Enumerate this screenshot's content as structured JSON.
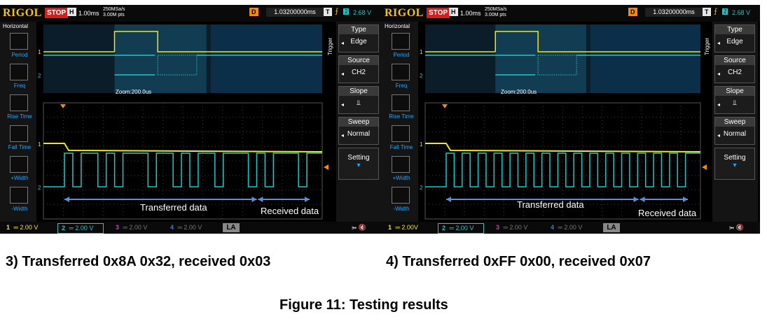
{
  "scopes": [
    {
      "brand": "RIGOL",
      "run_state": "STOP",
      "h_label": "H",
      "timebase": "1.00ms",
      "sample_rate": "250MSa/s",
      "mem_depth": "3.00M pts",
      "d_label": "D",
      "delay": "1.03200000ms",
      "t_label": "T",
      "trigger_channel": "2",
      "trigger_level": "2.68 V",
      "left_menu_title": "Horizontal",
      "left_menu": [
        "Period",
        "Freq",
        "Rise Time",
        "Fall Time",
        "+Width",
        "-Width"
      ],
      "zoom_label": "Zoom:200.0us",
      "trigger_tab": "Trigger",
      "right_menu": [
        {
          "title": "Type",
          "value": "Edge"
        },
        {
          "title": "Source",
          "value": "CH2"
        },
        {
          "title": "Slope",
          "value": "⫫"
        },
        {
          "title": "Sweep",
          "value": "Normal"
        },
        {
          "title": "Setting",
          "value": "▾"
        }
      ],
      "channels": [
        {
          "num": "1",
          "scale": "2.00 V"
        },
        {
          "num": "2",
          "scale": "2.00 V"
        },
        {
          "num": "3",
          "scale": "2.00 V"
        },
        {
          "num": "4",
          "scale": "2.00 V"
        }
      ],
      "la": "LA",
      "transferred_label": "Transferred data",
      "received_label": "Received  data",
      "caption": "3) Transferred 0x8A 0x32, received 0x03"
    },
    {
      "brand": "RIGOL",
      "run_state": "STOP",
      "h_label": "H",
      "timebase": "1.00ms",
      "sample_rate": "250MSa/s",
      "mem_depth": "3.00M pts",
      "d_label": "D",
      "delay": "1.03200000ms",
      "t_label": "T",
      "trigger_channel": "2",
      "trigger_level": "2.68 V",
      "left_menu_title": "Horizontal",
      "left_menu": [
        "Period",
        "Freq",
        "Rise Time",
        "Fall Time",
        "+Width",
        "-Width"
      ],
      "zoom_label": "Zoom:200.0us",
      "trigger_tab": "Trigger",
      "right_menu": [
        {
          "title": "Type",
          "value": "Edge"
        },
        {
          "title": "Source",
          "value": "CH2"
        },
        {
          "title": "Slope",
          "value": "⫫"
        },
        {
          "title": "Sweep",
          "value": "Normal"
        },
        {
          "title": "Setting",
          "value": "▾"
        }
      ],
      "channels": [
        {
          "num": "1",
          "scale": "2.00V"
        },
        {
          "num": "2",
          "scale": "2.00 V"
        },
        {
          "num": "3",
          "scale": "2.00 V"
        },
        {
          "num": "4",
          "scale": "2.00 V"
        }
      ],
      "la": "LA",
      "transferred_label": "Transferred data",
      "received_label": "Received  data",
      "caption": "4) Transferred 0xFF 0x00, received 0x07"
    }
  ],
  "figure_caption": "Figure 11: Testing results",
  "colors": {
    "ch1": "#f2e61a",
    "ch2": "#22c7c7",
    "grid": "#3a3a3a",
    "zoom_region": "#123c52",
    "arrow": "#5b8fd6"
  }
}
